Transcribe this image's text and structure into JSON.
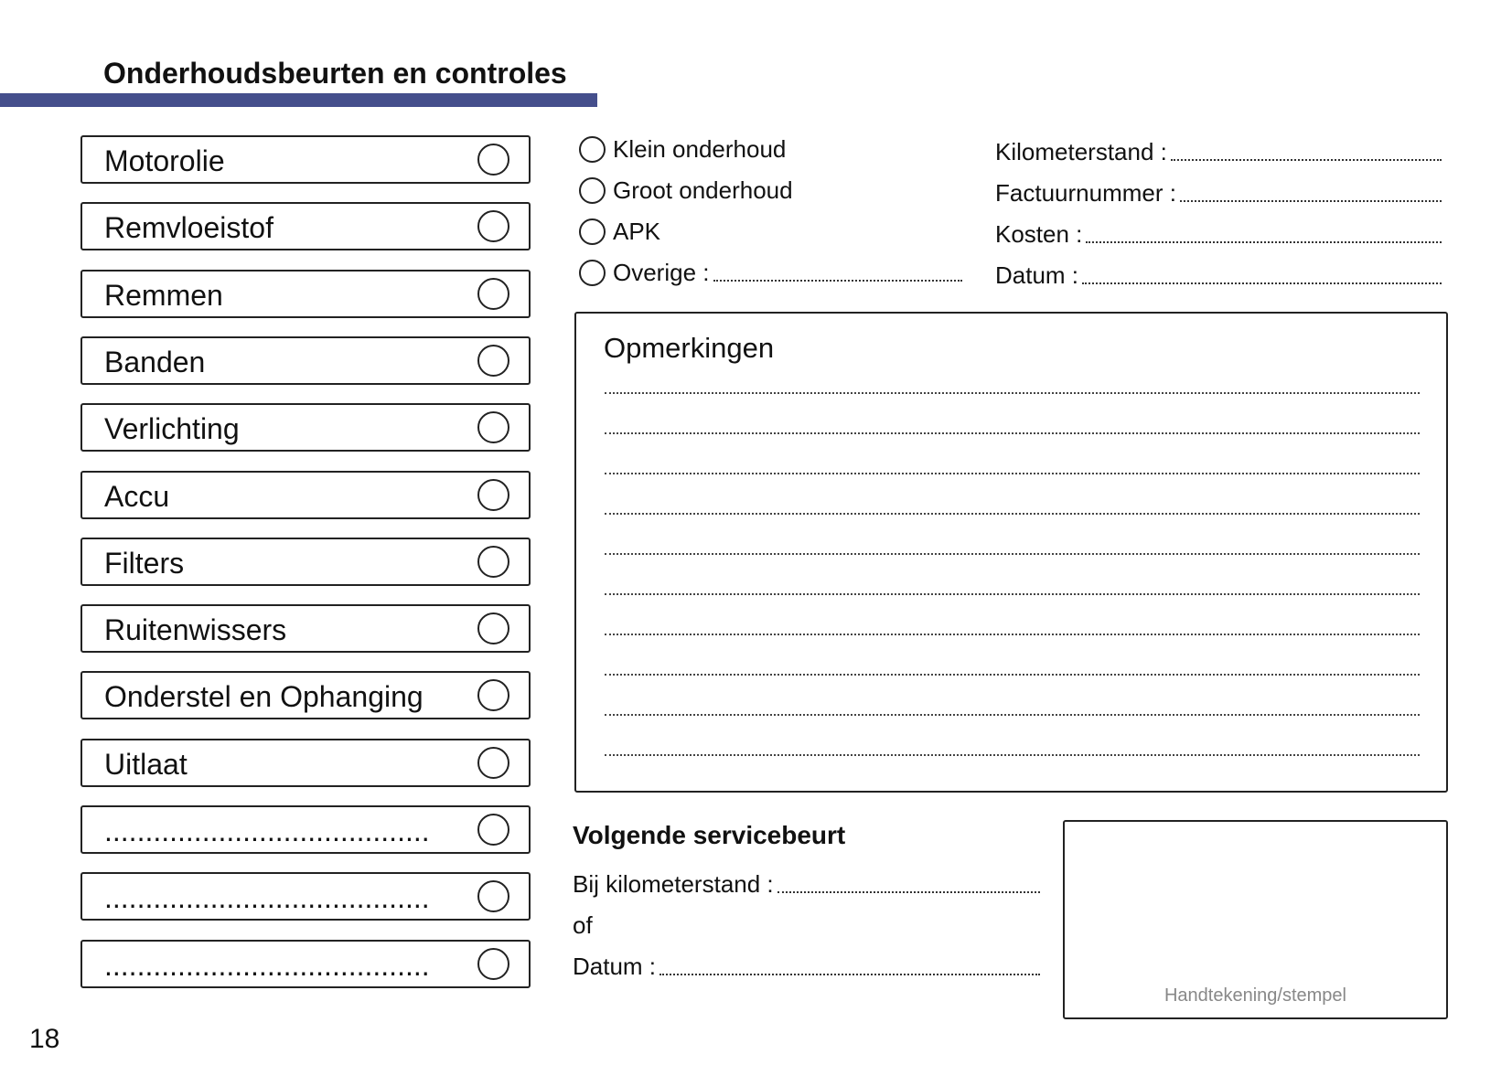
{
  "header": {
    "title": "Onderhoudsbeurten en controles",
    "accent_color": "#454f8c"
  },
  "checklist": [
    {
      "label": "Motorolie"
    },
    {
      "label": "Remvloeistof"
    },
    {
      "label": "Remmen"
    },
    {
      "label": "Banden"
    },
    {
      "label": "Verlichting"
    },
    {
      "label": "Accu"
    },
    {
      "label": "Filters"
    },
    {
      "label": "Ruitenwissers"
    },
    {
      "label": "Onderstel en Ophanging"
    },
    {
      "label": "Uitlaat"
    },
    {
      "label": "........................................"
    },
    {
      "label": "........................................"
    },
    {
      "label": "........................................"
    }
  ],
  "service_types": [
    {
      "label": "Klein onderhoud"
    },
    {
      "label": "Groot onderhoud"
    },
    {
      "label": "APK"
    },
    {
      "label": "Overige :"
    }
  ],
  "fields": [
    {
      "label": "Kilometerstand :"
    },
    {
      "label": "Factuurnummer :"
    },
    {
      "label": "Kosten :"
    },
    {
      "label": "Datum :"
    }
  ],
  "notes": {
    "title": "Opmerkingen"
  },
  "next_service": {
    "title": "Volgende servicebeurt",
    "km_label": "Bij kilometerstand :",
    "or_label": "of",
    "date_label": "Datum :"
  },
  "signature": {
    "label": "Handtekening/stempel"
  },
  "page_number": "18"
}
